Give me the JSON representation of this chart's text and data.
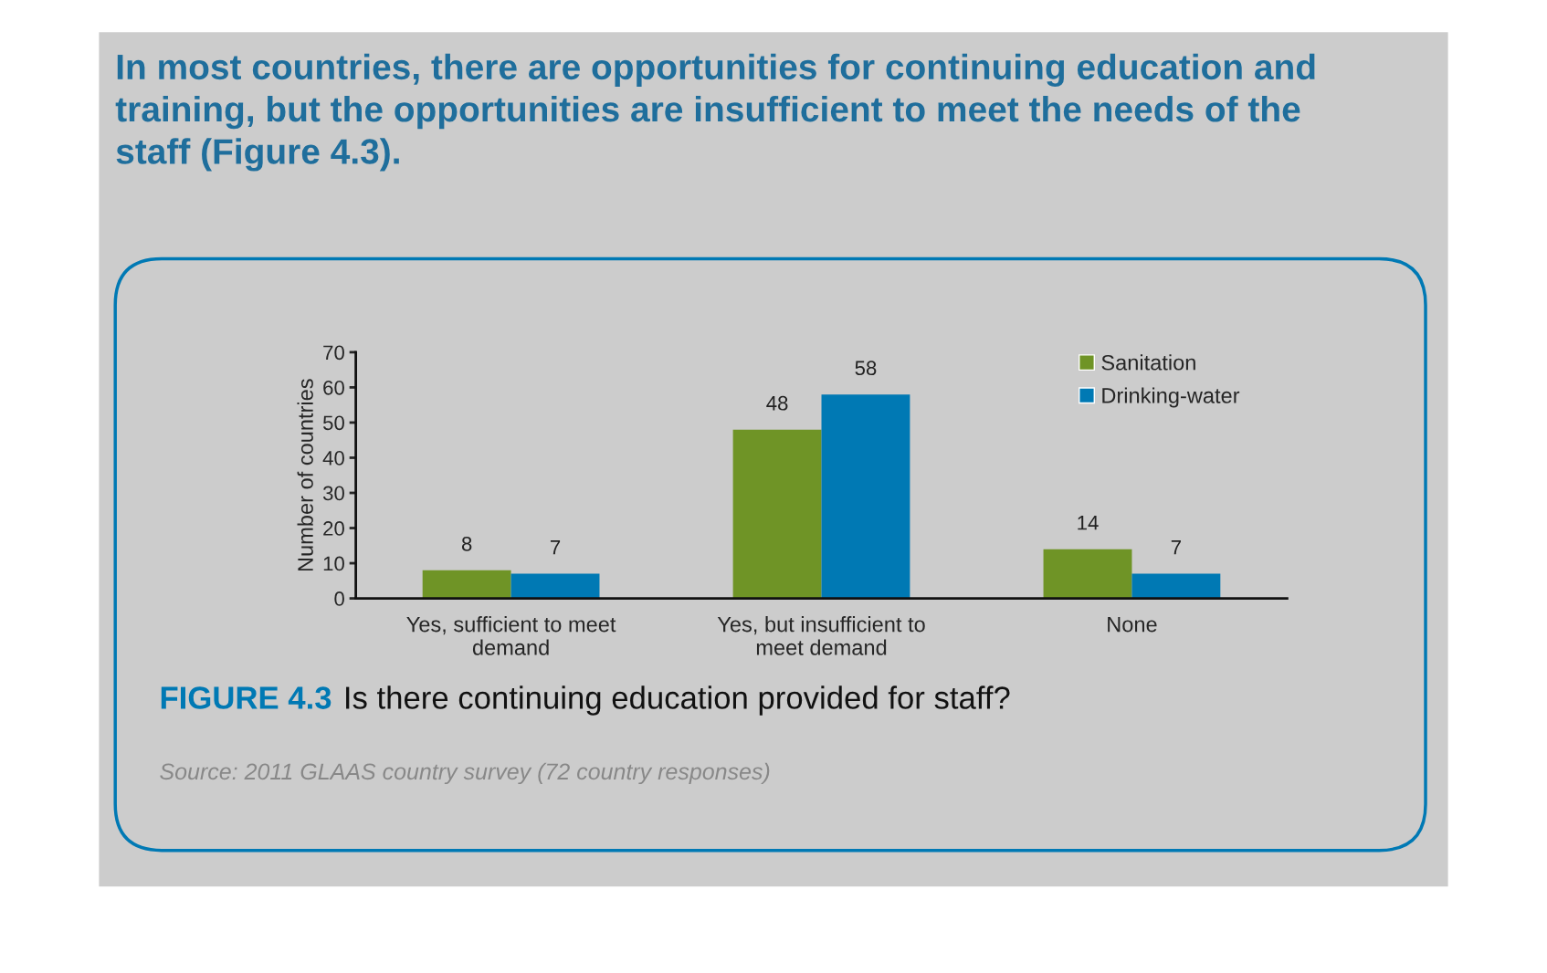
{
  "chart_data": {
    "type": "bar",
    "title": "In most countries, there are opportunities for continuing education and training, but the opportunities are insufficient to meet the needs of the staff (Figure 4.3).",
    "ylabel": "Number of countries",
    "categories": [
      "Yes, sufficient to meet\ndemand",
      "Yes, but insufficient to\nmeet demand",
      "None"
    ],
    "series": [
      {
        "name": "Sanitation",
        "color": "#6f9426",
        "values": [
          8,
          48,
          14
        ]
      },
      {
        "name": "Drinking-water",
        "color": "#0079b4",
        "values": [
          7,
          58,
          7
        ]
      }
    ],
    "ylim": [
      0,
      70
    ],
    "yticks": [
      0,
      10,
      20,
      30,
      40,
      50,
      60,
      70
    ],
    "data_labels": true,
    "legend": "top right",
    "annotations": [
      "FIGURE 4.3",
      "Is there continuing education provided for staff?",
      "Source: 2011 GLAAS country survey (72 country responses)"
    ]
  }
}
